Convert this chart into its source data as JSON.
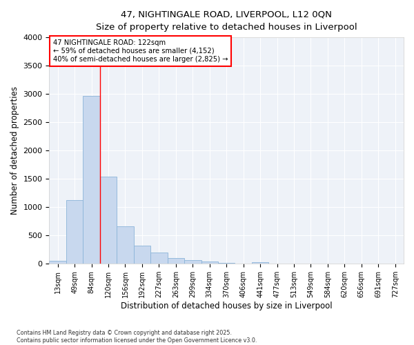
{
  "title_line1": "47, NIGHTINGALE ROAD, LIVERPOOL, L12 0QN",
  "title_line2": "Size of property relative to detached houses in Liverpool",
  "xlabel": "Distribution of detached houses by size in Liverpool",
  "ylabel": "Number of detached properties",
  "bar_color": "#c8d8ee",
  "bar_edge_color": "#8ab4d8",
  "background_color": "#eef2f8",
  "grid_color": "#ffffff",
  "categories": [
    "13sqm",
    "49sqm",
    "84sqm",
    "120sqm",
    "156sqm",
    "192sqm",
    "227sqm",
    "263sqm",
    "299sqm",
    "334sqm",
    "370sqm",
    "406sqm",
    "441sqm",
    "477sqm",
    "513sqm",
    "549sqm",
    "584sqm",
    "620sqm",
    "656sqm",
    "691sqm",
    "727sqm"
  ],
  "values": [
    55,
    1130,
    2960,
    1540,
    660,
    325,
    200,
    100,
    65,
    40,
    15,
    5,
    30,
    5,
    3,
    2,
    2,
    1,
    1,
    1,
    2
  ],
  "ylim": [
    0,
    4000
  ],
  "yticks": [
    0,
    500,
    1000,
    1500,
    2000,
    2500,
    3000,
    3500,
    4000
  ],
  "red_line_index": 3,
  "annotation_title": "47 NIGHTINGALE ROAD: 122sqm",
  "annotation_line2": "← 59% of detached houses are smaller (4,152)",
  "annotation_line3": "40% of semi-detached houses are larger (2,825) →",
  "footer_line1": "Contains HM Land Registry data © Crown copyright and database right 2025.",
  "footer_line2": "Contains public sector information licensed under the Open Government Licence v3.0."
}
